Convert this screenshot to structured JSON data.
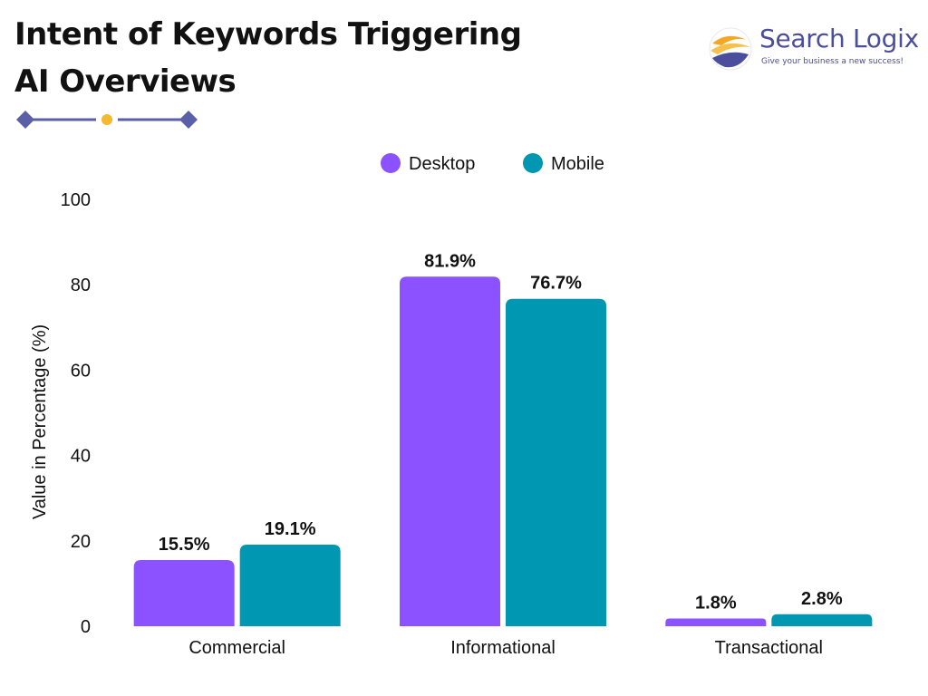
{
  "header": {
    "title_line1": "Intent of Keywords Triggering",
    "title_line2": "AI Overviews"
  },
  "logo": {
    "name": "Search Logix",
    "tagline": "Give your business a new success!",
    "icon": "swirl-logo-icon"
  },
  "colors": {
    "desktop": "#8c52ff",
    "mobile": "#0097b2",
    "accent": "#5b5fa8",
    "dot": "#f5b82e"
  },
  "chart_data": {
    "type": "bar",
    "categories": [
      "Commercial",
      "Informational",
      "Transactional"
    ],
    "series": [
      {
        "name": "Desktop",
        "values": [
          15.5,
          81.9,
          1.8
        ],
        "labels": [
          "15.5%",
          "81.9%",
          "1.8%"
        ],
        "color": "#8c52ff"
      },
      {
        "name": "Mobile",
        "values": [
          19.1,
          76.7,
          2.8
        ],
        "labels": [
          "19.1%",
          "76.7%",
          "2.8%"
        ],
        "color": "#0097b2"
      }
    ],
    "ylabel": "Value in Percentage (%)",
    "xlabel": "",
    "ylim": [
      0,
      100
    ],
    "yticks": [
      0,
      20,
      40,
      60,
      80,
      100
    ],
    "grid": false,
    "legend_position": "top-center"
  }
}
